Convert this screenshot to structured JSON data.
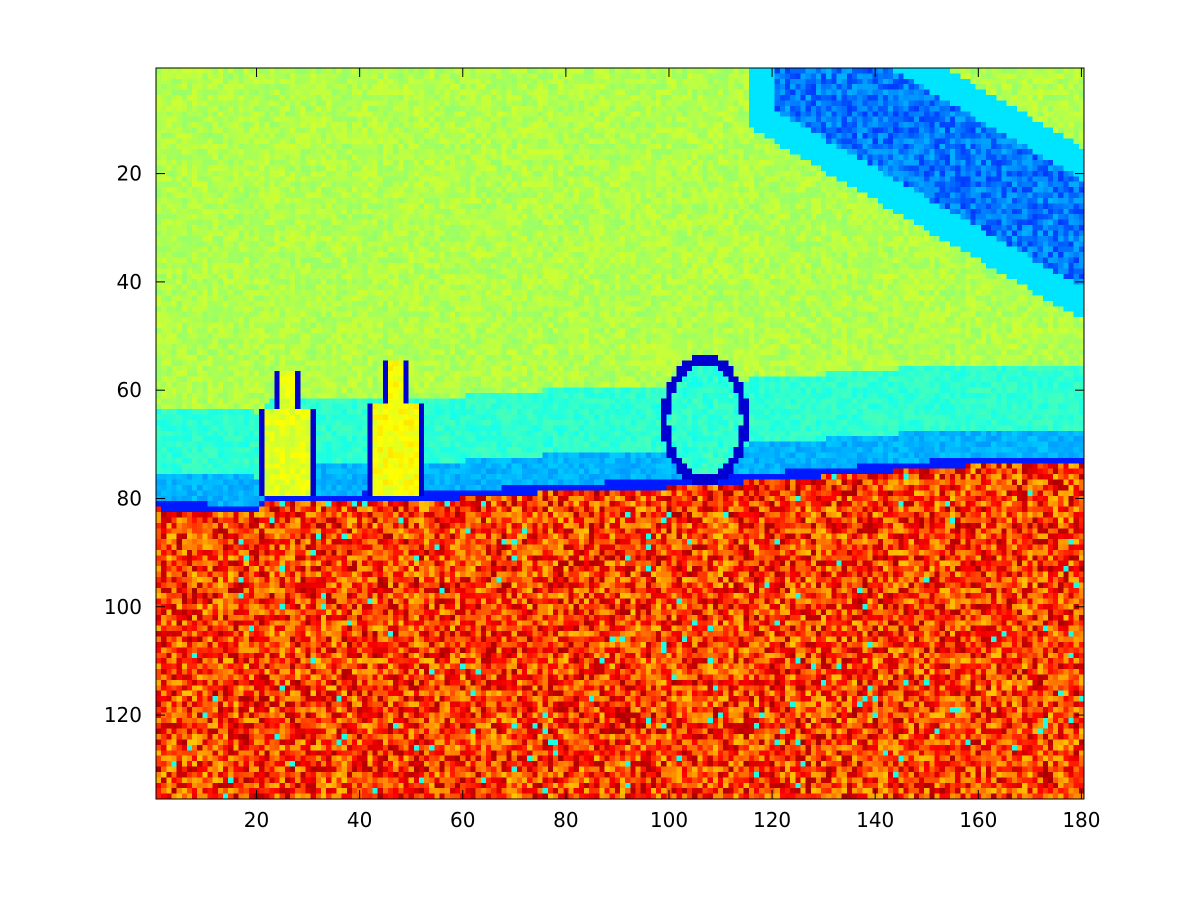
{
  "chart_data": {
    "type": "heatmap",
    "title": "",
    "xlabel": "",
    "ylabel": "",
    "colormap": "jet",
    "image_size": {
      "columns": 180,
      "rows": 135
    },
    "xlim": [
      0.5,
      180.5
    ],
    "ylim": [
      0.5,
      135.5
    ],
    "y_direction": "reversed",
    "grid": false,
    "x_ticks": [
      20,
      40,
      60,
      80,
      100,
      120,
      140,
      160,
      180
    ],
    "y_ticks": [
      20,
      40,
      60,
      80,
      100,
      120
    ],
    "scene": {
      "sky_value": 0.55,
      "ground_value": 0.82,
      "horizon_row_at_x": [
        [
          1,
          81
        ],
        [
          20,
          82
        ],
        [
          22,
          80
        ],
        [
          60,
          79
        ],
        [
          75,
          78
        ],
        [
          100,
          77
        ],
        [
          130,
          75
        ],
        [
          158,
          73
        ],
        [
          180,
          73
        ]
      ],
      "objects": [
        {
          "name": "left-bottle",
          "x_center": 26,
          "top_row": 57,
          "bottom_row": 79,
          "value": 0.6
        },
        {
          "name": "middle-bottle",
          "x_center": 47,
          "top_row": 55,
          "bottom_row": 79,
          "value": 0.62
        },
        {
          "name": "round-object",
          "x_center": 107,
          "top_row": 56,
          "bottom_row": 77,
          "value": 0.42
        }
      ]
    }
  }
}
